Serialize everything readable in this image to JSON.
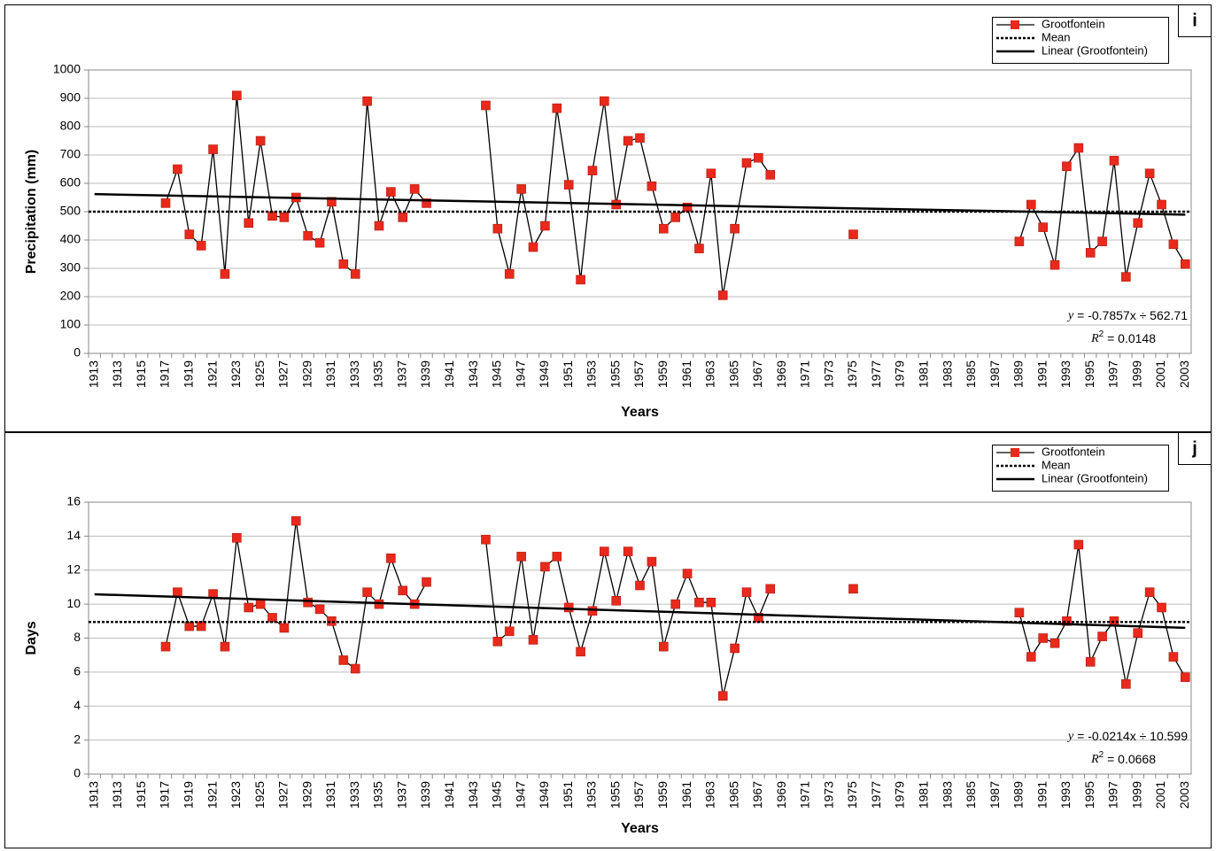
{
  "chart_data": [
    {
      "type": "line",
      "panel_label": "i",
      "y_label": "Precipitation (mm)",
      "x_label": "Years",
      "categories": [
        "1913",
        null,
        "1913",
        null,
        "1915",
        null,
        "1917",
        null,
        "1919",
        null,
        "1921",
        null,
        "1923",
        null,
        "1925",
        null,
        "1927",
        null,
        "1929",
        null,
        "1931",
        null,
        "1933",
        null,
        "1935",
        null,
        "1937",
        null,
        "1939",
        null,
        "1941",
        null,
        "1943",
        null,
        "1945",
        null,
        "1947",
        null,
        "1949",
        null,
        "1951",
        null,
        "1953",
        null,
        "1955",
        null,
        "1957",
        null,
        "1959",
        null,
        "1961",
        null,
        "1963",
        null,
        "1965",
        null,
        "1967",
        null,
        "1969",
        null,
        "1971",
        null,
        "1973",
        null,
        "1975",
        null,
        "1977",
        null,
        "1979",
        null,
        "1981",
        null,
        "1983",
        null,
        "1985",
        null,
        "1987",
        null,
        "1989",
        null,
        "1991",
        null,
        "1993",
        null,
        "1995",
        null,
        "1997",
        null,
        "1999",
        null,
        "2001",
        null,
        "2003"
      ],
      "series": [
        {
          "name": "Grootfontein",
          "color": "#e8291c",
          "values": [
            null,
            null,
            null,
            null,
            null,
            null,
            530,
            650,
            420,
            380,
            720,
            280,
            910,
            460,
            750,
            485,
            480,
            550,
            415,
            390,
            535,
            315,
            280,
            890,
            450,
            570,
            480,
            580,
            530,
            null,
            null,
            null,
            null,
            875,
            440,
            280,
            580,
            375,
            450,
            865,
            595,
            260,
            645,
            890,
            525,
            750,
            760,
            590,
            440,
            480,
            515,
            370,
            635,
            205,
            440,
            672,
            690,
            630,
            null,
            null,
            null,
            null,
            null,
            null,
            420,
            null,
            null,
            null,
            null,
            null,
            null,
            null,
            null,
            null,
            null,
            null,
            null,
            null,
            395,
            525,
            445,
            312,
            660,
            725,
            355,
            395,
            680,
            270,
            460,
            635,
            525,
            385,
            315
          ]
        },
        {
          "name": "Mean",
          "color": "#000000",
          "value": 500
        },
        {
          "name": "Linear (Grootfontein)",
          "color": "#000000",
          "slope": -0.7857,
          "intercept": 562.71
        }
      ],
      "equation": {
        "symbol": "y",
        "text": " = -0.7857x ÷ 562.71"
      },
      "r2": {
        "symbol": "R",
        "exponent": "2",
        "text": " = 0.0148"
      },
      "ylim": [
        0,
        1000
      ],
      "yticks": [
        0,
        100,
        200,
        300,
        400,
        500,
        600,
        700,
        800,
        900,
        1000
      ],
      "grid": true
    },
    {
      "type": "line",
      "panel_label": "j",
      "y_label": "Days",
      "x_label": "Years",
      "categories": [
        "1913",
        null,
        "1913",
        null,
        "1915",
        null,
        "1917",
        null,
        "1919",
        null,
        "1921",
        null,
        "1923",
        null,
        "1925",
        null,
        "1927",
        null,
        "1929",
        null,
        "1931",
        null,
        "1933",
        null,
        "1935",
        null,
        "1937",
        null,
        "1939",
        null,
        "1941",
        null,
        "1943",
        null,
        "1945",
        null,
        "1947",
        null,
        "1949",
        null,
        "1951",
        null,
        "1953",
        null,
        "1955",
        null,
        "1957",
        null,
        "1959",
        null,
        "1961",
        null,
        "1963",
        null,
        "1965",
        null,
        "1967",
        null,
        "1969",
        null,
        "1971",
        null,
        "1973",
        null,
        "1975",
        null,
        "1977",
        null,
        "1979",
        null,
        "1981",
        null,
        "1983",
        null,
        "1985",
        null,
        "1987",
        null,
        "1989",
        null,
        "1991",
        null,
        "1993",
        null,
        "1995",
        null,
        "1997",
        null,
        "1999",
        null,
        "2001",
        null,
        "2003"
      ],
      "series": [
        {
          "name": "Grootfontein",
          "color": "#e8291c",
          "values": [
            null,
            null,
            null,
            null,
            null,
            null,
            7.5,
            10.7,
            8.7,
            8.7,
            10.6,
            7.5,
            13.9,
            9.8,
            10.0,
            9.2,
            8.6,
            14.9,
            10.1,
            9.7,
            9.0,
            6.7,
            6.2,
            10.7,
            10.0,
            12.7,
            10.8,
            10.0,
            11.3,
            null,
            null,
            null,
            null,
            13.8,
            7.8,
            8.4,
            12.8,
            7.9,
            12.2,
            12.8,
            9.8,
            7.2,
            9.6,
            13.1,
            10.2,
            13.1,
            11.1,
            12.5,
            7.5,
            10.0,
            11.8,
            10.1,
            10.1,
            4.6,
            7.4,
            10.7,
            9.2,
            10.9,
            null,
            null,
            null,
            null,
            null,
            null,
            10.9,
            null,
            null,
            null,
            null,
            null,
            null,
            null,
            null,
            null,
            null,
            null,
            null,
            null,
            9.5,
            6.9,
            8.0,
            7.7,
            9.0,
            13.5,
            6.6,
            8.1,
            9.0,
            5.3,
            8.3,
            10.7,
            9.8,
            6.9,
            5.7
          ]
        },
        {
          "name": "Mean",
          "color": "#000000",
          "value": 8.95
        },
        {
          "name": "Linear (Grootfontein)",
          "color": "#000000",
          "slope": -0.0214,
          "intercept": 10.599
        }
      ],
      "equation": {
        "symbol": "y",
        "text": " = -0.0214x ÷ 10.599"
      },
      "r2": {
        "symbol": "R",
        "exponent": "2",
        "text": " = 0.0668"
      },
      "ylim": [
        0,
        16
      ],
      "yticks": [
        0,
        2,
        4,
        6,
        8,
        10,
        12,
        14,
        16
      ],
      "grid": true
    }
  ]
}
